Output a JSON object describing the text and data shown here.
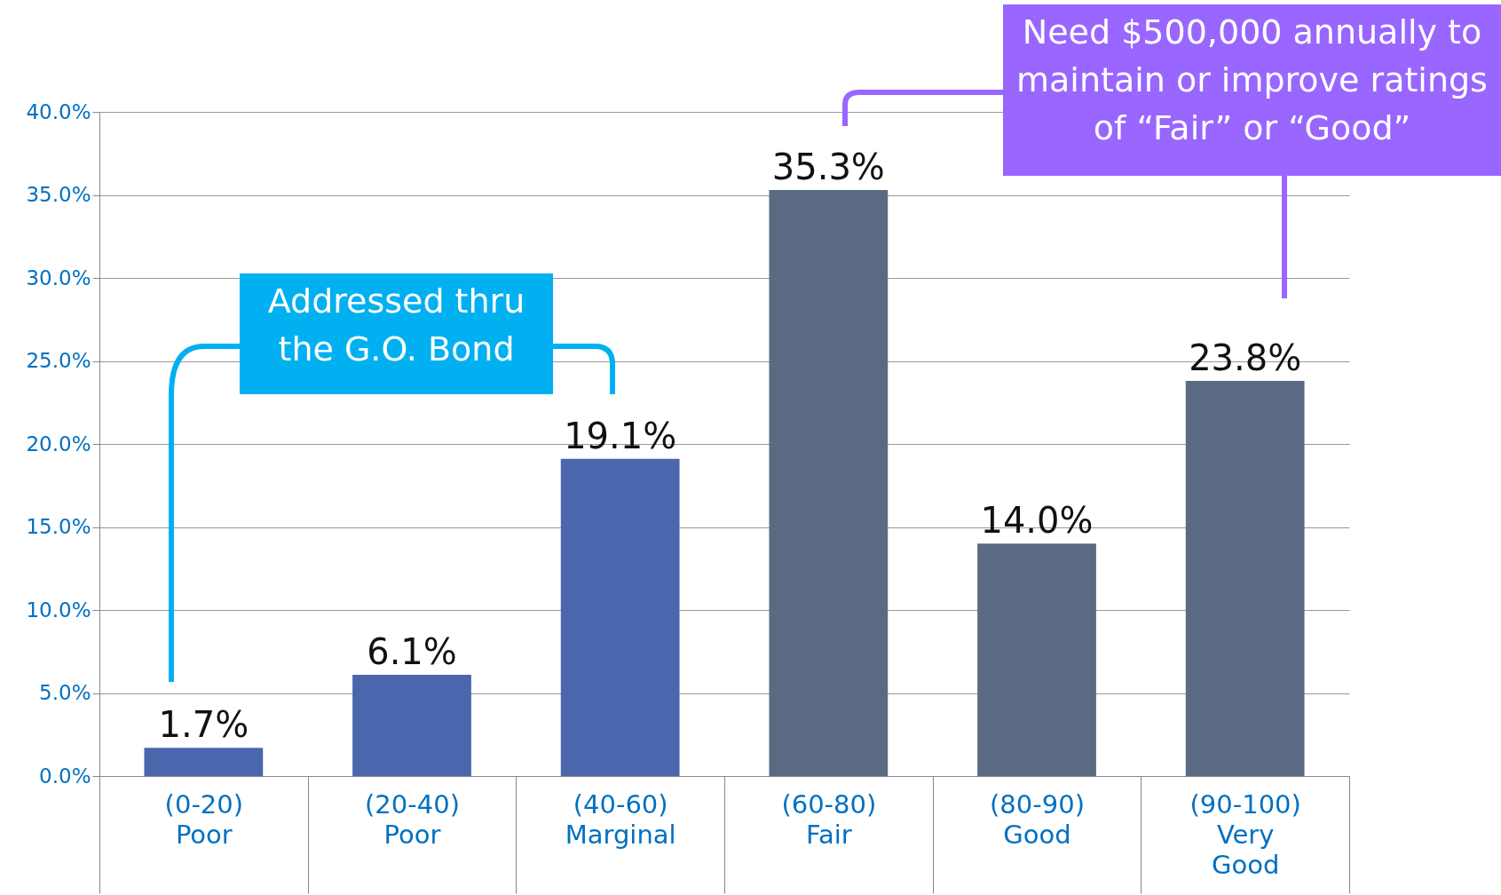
{
  "chart_data": {
    "type": "bar",
    "categories": [
      "(0-20)\nPoor",
      "(20-40)\nPoor",
      "(40-60)\nMarginal",
      "(60-80)\nFair",
      "(80-90)\nGood",
      "(90-100)\nVery\nGood"
    ],
    "values": [
      1.7,
      6.1,
      19.1,
      35.3,
      14.0,
      23.8
    ],
    "value_labels": [
      "1.7%",
      "6.1%",
      "19.1%",
      "35.3%",
      "14.0%",
      "23.8%"
    ],
    "colors": [
      "#4a66ad",
      "#4a66ad",
      "#4a66ad",
      "#5a6a82",
      "#5a6a82",
      "#5a6a82"
    ],
    "ylim": [
      0,
      40
    ],
    "yticks": [
      {
        "value": 0,
        "label": "0.0%"
      },
      {
        "value": 5,
        "label": "5.0%"
      },
      {
        "value": 10,
        "label": "10.0%"
      },
      {
        "value": 15,
        "label": "15.0%"
      },
      {
        "value": 20,
        "label": "20.0%"
      },
      {
        "value": 25,
        "label": "25.0%"
      },
      {
        "value": 30,
        "label": "30.0%"
      },
      {
        "value": 35,
        "label": "35.0%"
      },
      {
        "value": 40,
        "label": "40.0%"
      }
    ],
    "grid": "y",
    "annotations": [
      "Addressed thru the G.O. Bond",
      "Need $500,000 annually to maintain or improve ratings of “Fair” or “Good”"
    ]
  }
}
